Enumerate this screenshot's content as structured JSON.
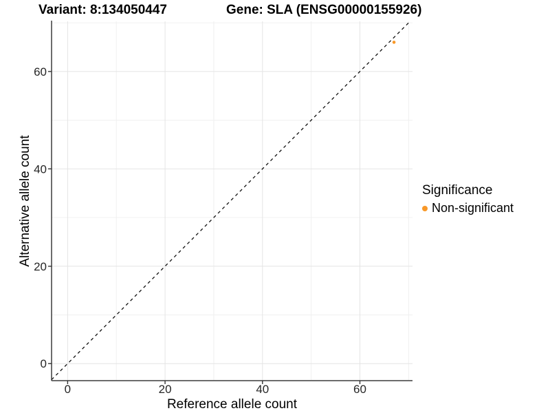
{
  "header": {
    "title_left": "Variant: 8:134050447",
    "title_right": "Gene: SLA (ENSG00000155926)"
  },
  "chart_data": {
    "type": "scatter",
    "title_left": "Variant: 8:134050447",
    "title_right": "Gene: SLA (ENSG00000155926)",
    "xlabel": "Reference allele count",
    "ylabel": "Alternative allele count",
    "xlim": [
      -3.3,
      70.8
    ],
    "ylim": [
      -3.5,
      70.3
    ],
    "x_major_ticks": [
      0,
      20,
      40,
      60
    ],
    "y_major_ticks": [
      0,
      20,
      40,
      60
    ],
    "x_minor_ticks": [
      10,
      30,
      50,
      70
    ],
    "y_minor_ticks": [
      10,
      30,
      50,
      70
    ],
    "grid": true,
    "points": [
      {
        "x": 67,
        "y": 66,
        "series": "Non-significant"
      }
    ],
    "identity_line": {
      "slope": 1,
      "intercept": 0,
      "style": "dashed"
    },
    "legend": {
      "title": "Significance",
      "position": "right",
      "items": [
        {
          "label": "Non-significant",
          "color": "#F89828"
        }
      ]
    }
  },
  "colors": {
    "point": "#F89828",
    "grid_major": "#e4e4e4",
    "grid_minor": "#f0f0f0",
    "axis_line": "#3c3c3c",
    "tick_mark": "#333333",
    "tick_text": "#262626",
    "dashed_line": "#111111",
    "background": "#ffffff"
  }
}
